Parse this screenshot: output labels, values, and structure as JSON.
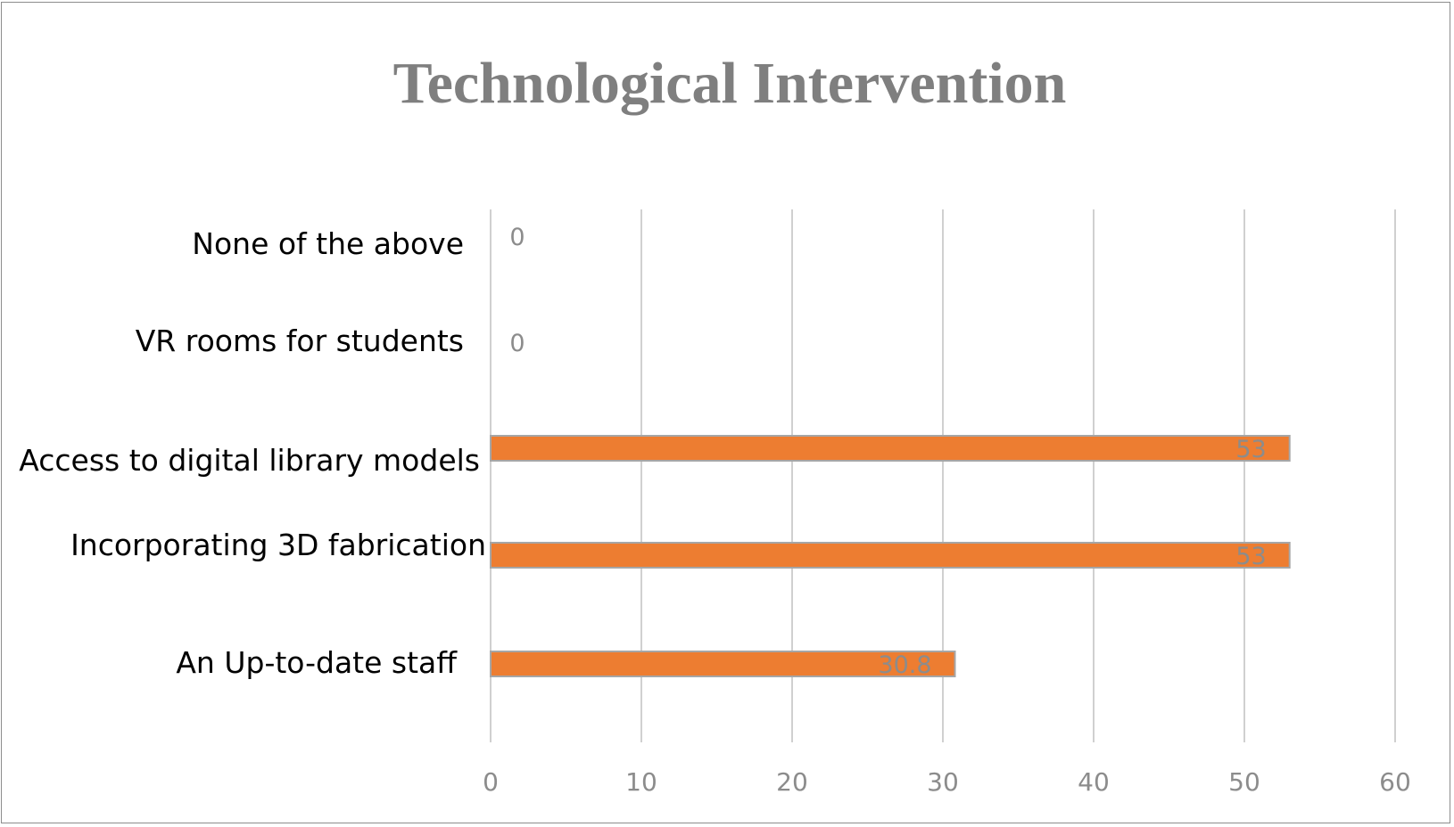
{
  "chart_data": {
    "type": "bar",
    "orientation": "horizontal",
    "title": "Technological Intervention",
    "categories": [
      "None of the above",
      "VR rooms for students",
      "Access to digital library models",
      "Incorporating 3D fabrication",
      "An Up-to-date staff"
    ],
    "values": [
      0,
      0,
      53,
      53,
      30.8
    ],
    "data_labels": [
      "0",
      "0",
      "53",
      "53",
      "30.8"
    ],
    "xlim": [
      0,
      60
    ],
    "xticks": [
      "0",
      "10",
      "20",
      "30",
      "40",
      "50",
      "60"
    ],
    "grid": true,
    "legend": "none",
    "bar_color": "#ed7d31"
  }
}
